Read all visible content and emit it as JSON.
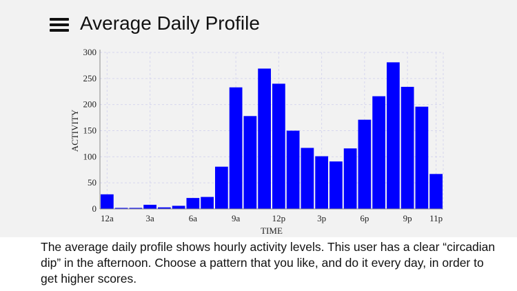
{
  "header": {
    "title": "Average Daily Profile",
    "menu_icon": "hamburger-menu-icon"
  },
  "chart_data": {
    "type": "bar",
    "xlabel": "TIME",
    "ylabel": "ACTIVITY",
    "ylim": [
      0,
      300
    ],
    "y_ticks": [
      0,
      50,
      100,
      150,
      200,
      250,
      300
    ],
    "x_tick_labels": [
      {
        "index": 0,
        "label": "12a"
      },
      {
        "index": 3,
        "label": "3a"
      },
      {
        "index": 6,
        "label": "6a"
      },
      {
        "index": 9,
        "label": "9a"
      },
      {
        "index": 12,
        "label": "12p"
      },
      {
        "index": 15,
        "label": "3p"
      },
      {
        "index": 18,
        "label": "6p"
      },
      {
        "index": 21,
        "label": "9p"
      },
      {
        "index": 23,
        "label": "11p"
      }
    ],
    "categories": [
      "12a",
      "1a",
      "2a",
      "3a",
      "4a",
      "5a",
      "6a",
      "7a",
      "8a",
      "9a",
      "10a",
      "11a",
      "12p",
      "1p",
      "2p",
      "3p",
      "4p",
      "5p",
      "6p",
      "7p",
      "8p",
      "9p",
      "10p",
      "11p"
    ],
    "values": [
      28,
      2,
      2,
      8,
      3,
      6,
      21,
      23,
      81,
      233,
      178,
      269,
      240,
      150,
      117,
      101,
      91,
      116,
      171,
      216,
      281,
      234,
      196,
      67
    ],
    "bar_color": "#0000ff",
    "grid": true,
    "grid_color": "#d6d6ee"
  },
  "description": "The average daily profile shows hourly activity levels. This user has a clear “circadian dip” in the afternoon. Choose a pattern that you like, and do it every day, in order to get higher scores."
}
